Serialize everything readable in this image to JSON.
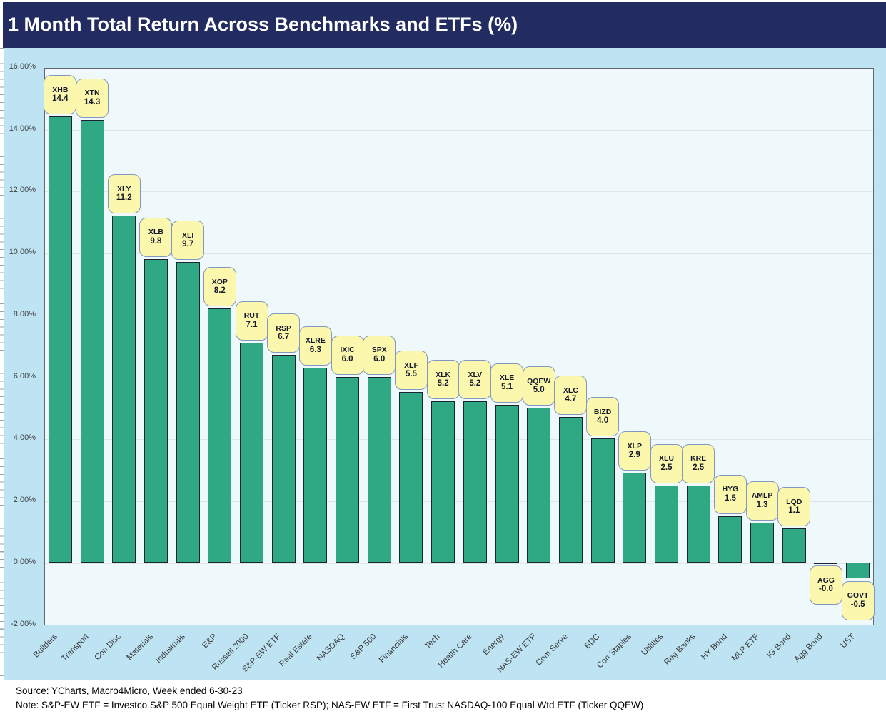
{
  "title": "1 Month Total Return Across Benchmarks and ETFs (%)",
  "chart_data": {
    "type": "bar",
    "title": "1 Month Total Return Across Benchmarks and ETFs (%)",
    "categories": [
      "Builders",
      "Transport",
      "Con Disc",
      "Materials",
      "Industrials",
      "E&P",
      "Russell 2000",
      "S&P-EW ETF",
      "Real Estate",
      "NASDAQ",
      "S&P 500",
      "Financials",
      "Tech",
      "Health Care",
      "Energy",
      "NAS-EW ETF",
      "Com Serve",
      "BDC",
      "Con Staples",
      "Utilities",
      "Reg Banks",
      "HY Bond",
      "MLP ETF",
      "IG Bond",
      "Agg Bond",
      "UST"
    ],
    "tickers": [
      "XHB",
      "XTN",
      "XLY",
      "XLB",
      "XLI",
      "XOP",
      "RUT",
      "RSP",
      "XLRE",
      "IXIC",
      "SPX",
      "XLF",
      "XLK",
      "XLV",
      "XLE",
      "QQEW",
      "XLC",
      "BIZD",
      "XLP",
      "XLU",
      "KRE",
      "HYG",
      "AMLP",
      "LQD",
      "AGG",
      "GOVT"
    ],
    "values": [
      14.4,
      14.3,
      11.2,
      9.8,
      9.7,
      8.2,
      7.1,
      6.7,
      6.3,
      6.0,
      6.0,
      5.5,
      5.2,
      5.2,
      5.1,
      5.0,
      4.7,
      4.0,
      2.9,
      2.5,
      2.5,
      1.5,
      1.3,
      1.1,
      -0.0,
      -0.5
    ],
    "value_labels": [
      "14.4",
      "14.3",
      "11.2",
      "9.8",
      "9.7",
      "8.2",
      "7.1",
      "6.7",
      "6.3",
      "6.0",
      "6.0",
      "5.5",
      "5.2",
      "5.2",
      "5.1",
      "5.0",
      "4.7",
      "4.0",
      "2.9",
      "2.5",
      "2.5",
      "1.5",
      "1.3",
      "1.1",
      "-0.0",
      "-0.5"
    ],
    "y_ticks": [
      "16.00%",
      "14.00%",
      "12.00%",
      "10.00%",
      "8.00%",
      "6.00%",
      "4.00%",
      "2.00%",
      "0.00%",
      "-2.00%"
    ],
    "y_tick_values": [
      16,
      14,
      12,
      10,
      8,
      6,
      4,
      2,
      0,
      -2
    ],
    "ylim": [
      -2,
      16
    ],
    "grid": true,
    "legend": "none",
    "bar_color": "#2FA984",
    "callout_fill": "#FBF8AD",
    "callout_border": "#8496C2",
    "title_bg": "#232C60",
    "outer_bg": "#BEE4F4",
    "plot_bg": "#EFF9FB"
  },
  "footer": {
    "source": "Source: YCharts, Macro4Micro, Week ended 6-30-23",
    "note": "Note: S&P-EW ETF = Investco S&P 500 Equal Weight ETF (Ticker RSP); NAS-EW ETF = First Trust NASDAQ-100 Equal Wtd ETF (Ticker QQEW)"
  }
}
